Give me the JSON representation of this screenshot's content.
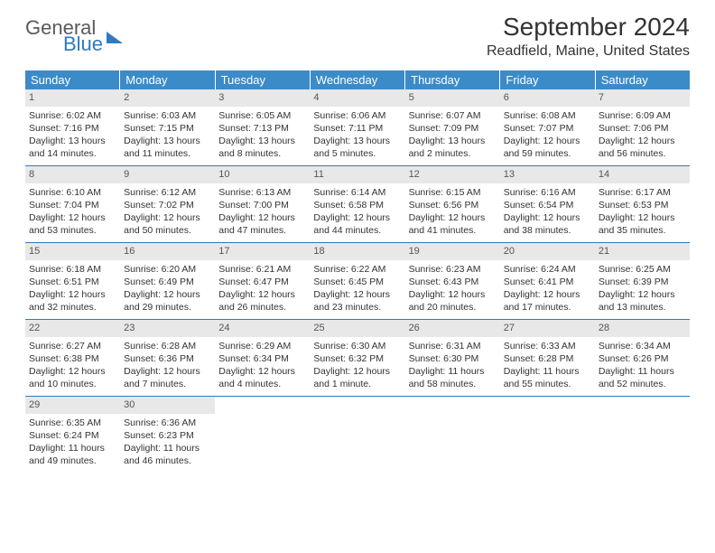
{
  "brand": {
    "word1": "General",
    "word2": "Blue"
  },
  "title": "September 2024",
  "location": "Readfield, Maine, United States",
  "colors": {
    "header_bg": "#3b8bc9",
    "header_text": "#ffffff",
    "daynum_bg": "#e8e8e8",
    "border": "#2f7ac0",
    "text": "#333333",
    "logo_blue": "#2f7ac0",
    "logo_gray": "#5a5a5a"
  },
  "typography": {
    "title_fontsize": 28,
    "location_fontsize": 16,
    "dayhead_fontsize": 13,
    "cell_fontsize": 10.5,
    "daynum_fontsize": 11
  },
  "day_names": [
    "Sunday",
    "Monday",
    "Tuesday",
    "Wednesday",
    "Thursday",
    "Friday",
    "Saturday"
  ],
  "weeks": [
    [
      {
        "n": "1",
        "sunrise": "Sunrise: 6:02 AM",
        "sunset": "Sunset: 7:16 PM",
        "daylight": "Daylight: 13 hours and 14 minutes."
      },
      {
        "n": "2",
        "sunrise": "Sunrise: 6:03 AM",
        "sunset": "Sunset: 7:15 PM",
        "daylight": "Daylight: 13 hours and 11 minutes."
      },
      {
        "n": "3",
        "sunrise": "Sunrise: 6:05 AM",
        "sunset": "Sunset: 7:13 PM",
        "daylight": "Daylight: 13 hours and 8 minutes."
      },
      {
        "n": "4",
        "sunrise": "Sunrise: 6:06 AM",
        "sunset": "Sunset: 7:11 PM",
        "daylight": "Daylight: 13 hours and 5 minutes."
      },
      {
        "n": "5",
        "sunrise": "Sunrise: 6:07 AM",
        "sunset": "Sunset: 7:09 PM",
        "daylight": "Daylight: 13 hours and 2 minutes."
      },
      {
        "n": "6",
        "sunrise": "Sunrise: 6:08 AM",
        "sunset": "Sunset: 7:07 PM",
        "daylight": "Daylight: 12 hours and 59 minutes."
      },
      {
        "n": "7",
        "sunrise": "Sunrise: 6:09 AM",
        "sunset": "Sunset: 7:06 PM",
        "daylight": "Daylight: 12 hours and 56 minutes."
      }
    ],
    [
      {
        "n": "8",
        "sunrise": "Sunrise: 6:10 AM",
        "sunset": "Sunset: 7:04 PM",
        "daylight": "Daylight: 12 hours and 53 minutes."
      },
      {
        "n": "9",
        "sunrise": "Sunrise: 6:12 AM",
        "sunset": "Sunset: 7:02 PM",
        "daylight": "Daylight: 12 hours and 50 minutes."
      },
      {
        "n": "10",
        "sunrise": "Sunrise: 6:13 AM",
        "sunset": "Sunset: 7:00 PM",
        "daylight": "Daylight: 12 hours and 47 minutes."
      },
      {
        "n": "11",
        "sunrise": "Sunrise: 6:14 AM",
        "sunset": "Sunset: 6:58 PM",
        "daylight": "Daylight: 12 hours and 44 minutes."
      },
      {
        "n": "12",
        "sunrise": "Sunrise: 6:15 AM",
        "sunset": "Sunset: 6:56 PM",
        "daylight": "Daylight: 12 hours and 41 minutes."
      },
      {
        "n": "13",
        "sunrise": "Sunrise: 6:16 AM",
        "sunset": "Sunset: 6:54 PM",
        "daylight": "Daylight: 12 hours and 38 minutes."
      },
      {
        "n": "14",
        "sunrise": "Sunrise: 6:17 AM",
        "sunset": "Sunset: 6:53 PM",
        "daylight": "Daylight: 12 hours and 35 minutes."
      }
    ],
    [
      {
        "n": "15",
        "sunrise": "Sunrise: 6:18 AM",
        "sunset": "Sunset: 6:51 PM",
        "daylight": "Daylight: 12 hours and 32 minutes."
      },
      {
        "n": "16",
        "sunrise": "Sunrise: 6:20 AM",
        "sunset": "Sunset: 6:49 PM",
        "daylight": "Daylight: 12 hours and 29 minutes."
      },
      {
        "n": "17",
        "sunrise": "Sunrise: 6:21 AM",
        "sunset": "Sunset: 6:47 PM",
        "daylight": "Daylight: 12 hours and 26 minutes."
      },
      {
        "n": "18",
        "sunrise": "Sunrise: 6:22 AM",
        "sunset": "Sunset: 6:45 PM",
        "daylight": "Daylight: 12 hours and 23 minutes."
      },
      {
        "n": "19",
        "sunrise": "Sunrise: 6:23 AM",
        "sunset": "Sunset: 6:43 PM",
        "daylight": "Daylight: 12 hours and 20 minutes."
      },
      {
        "n": "20",
        "sunrise": "Sunrise: 6:24 AM",
        "sunset": "Sunset: 6:41 PM",
        "daylight": "Daylight: 12 hours and 17 minutes."
      },
      {
        "n": "21",
        "sunrise": "Sunrise: 6:25 AM",
        "sunset": "Sunset: 6:39 PM",
        "daylight": "Daylight: 12 hours and 13 minutes."
      }
    ],
    [
      {
        "n": "22",
        "sunrise": "Sunrise: 6:27 AM",
        "sunset": "Sunset: 6:38 PM",
        "daylight": "Daylight: 12 hours and 10 minutes."
      },
      {
        "n": "23",
        "sunrise": "Sunrise: 6:28 AM",
        "sunset": "Sunset: 6:36 PM",
        "daylight": "Daylight: 12 hours and 7 minutes."
      },
      {
        "n": "24",
        "sunrise": "Sunrise: 6:29 AM",
        "sunset": "Sunset: 6:34 PM",
        "daylight": "Daylight: 12 hours and 4 minutes."
      },
      {
        "n": "25",
        "sunrise": "Sunrise: 6:30 AM",
        "sunset": "Sunset: 6:32 PM",
        "daylight": "Daylight: 12 hours and 1 minute."
      },
      {
        "n": "26",
        "sunrise": "Sunrise: 6:31 AM",
        "sunset": "Sunset: 6:30 PM",
        "daylight": "Daylight: 11 hours and 58 minutes."
      },
      {
        "n": "27",
        "sunrise": "Sunrise: 6:33 AM",
        "sunset": "Sunset: 6:28 PM",
        "daylight": "Daylight: 11 hours and 55 minutes."
      },
      {
        "n": "28",
        "sunrise": "Sunrise: 6:34 AM",
        "sunset": "Sunset: 6:26 PM",
        "daylight": "Daylight: 11 hours and 52 minutes."
      }
    ],
    [
      {
        "n": "29",
        "sunrise": "Sunrise: 6:35 AM",
        "sunset": "Sunset: 6:24 PM",
        "daylight": "Daylight: 11 hours and 49 minutes."
      },
      {
        "n": "30",
        "sunrise": "Sunrise: 6:36 AM",
        "sunset": "Sunset: 6:23 PM",
        "daylight": "Daylight: 11 hours and 46 minutes."
      },
      {
        "empty": true
      },
      {
        "empty": true
      },
      {
        "empty": true
      },
      {
        "empty": true
      },
      {
        "empty": true
      }
    ]
  ]
}
